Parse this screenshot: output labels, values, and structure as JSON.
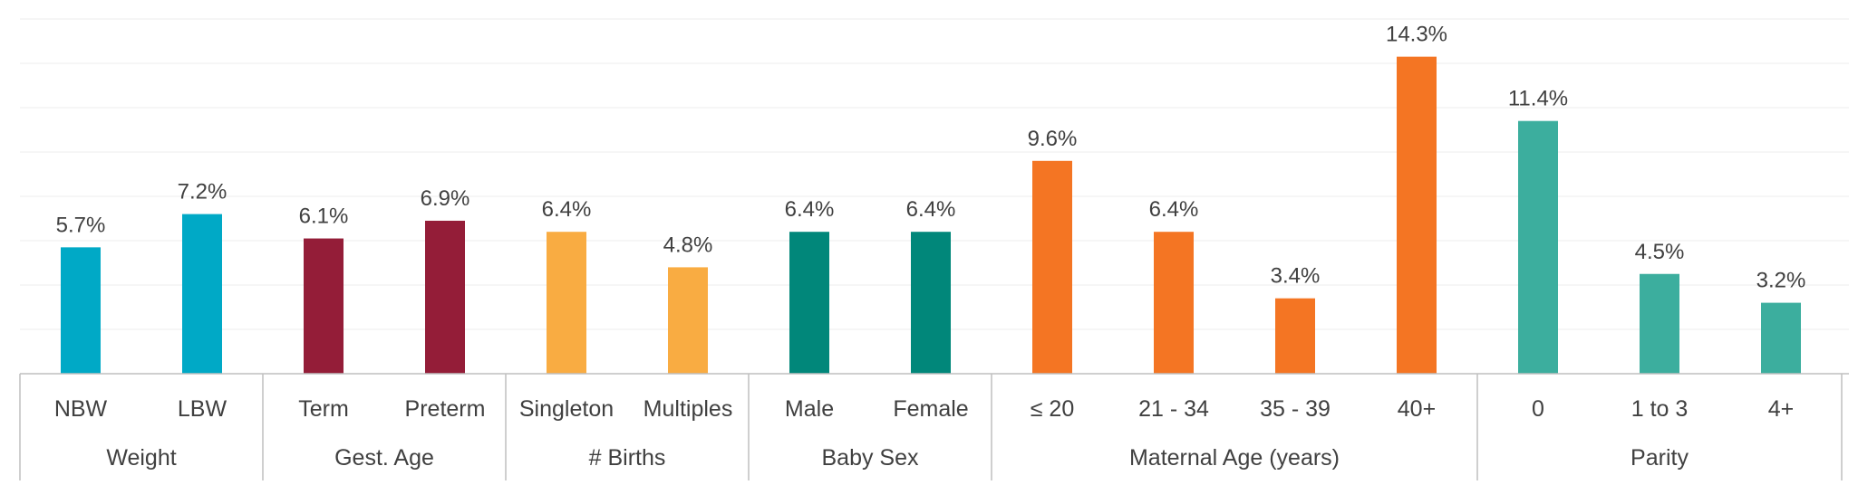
{
  "chart_data": {
    "type": "bar",
    "ylim": [
      0,
      16
    ],
    "grid": true,
    "groups": [
      {
        "name": "Weight",
        "color": "#00A9C6",
        "categories": [
          "NBW",
          "LBW"
        ],
        "values": [
          5.7,
          7.2
        ],
        "labels": [
          "5.7%",
          "7.2%"
        ]
      },
      {
        "name": "Gest. Age",
        "color": "#941D38",
        "categories": [
          "Term",
          "Preterm"
        ],
        "values": [
          6.1,
          6.9
        ],
        "labels": [
          "6.1%",
          "6.9%"
        ]
      },
      {
        "name": "# Births",
        "color": "#F9AC42",
        "categories": [
          "Singleton",
          "Multiples"
        ],
        "values": [
          6.4,
          4.8
        ],
        "labels": [
          "6.4%",
          "4.8%"
        ]
      },
      {
        "name": "Baby Sex",
        "color": "#01877A",
        "categories": [
          "Male",
          "Female"
        ],
        "values": [
          6.4,
          6.4
        ],
        "labels": [
          "6.4%",
          "6.4%"
        ]
      },
      {
        "name": "Maternal Age (years)",
        "color": "#F47523",
        "categories": [
          "≤ 20",
          "21 - 34",
          "35 - 39",
          "40+"
        ],
        "values": [
          9.6,
          6.4,
          3.4,
          14.3
        ],
        "labels": [
          "9.6%",
          "6.4%",
          "3.4%",
          "14.3%"
        ]
      },
      {
        "name": "Parity",
        "color": "#3CAE9E",
        "categories": [
          "0",
          "1 to 3",
          "4+"
        ],
        "values": [
          11.4,
          4.5,
          3.2
        ],
        "labels": [
          "11.4%",
          "4.5%",
          "3.2%"
        ]
      }
    ]
  }
}
